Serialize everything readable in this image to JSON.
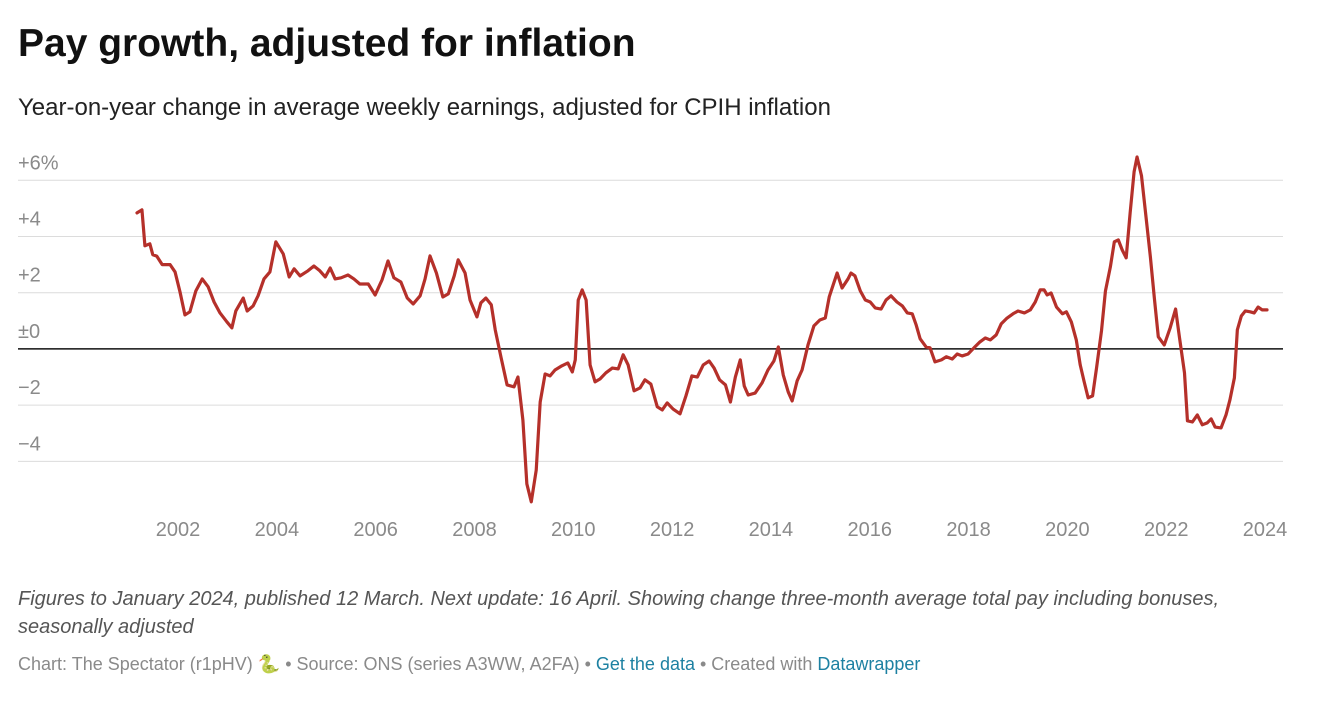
{
  "chart_data": {
    "type": "line",
    "title": "Pay growth, adjusted for inflation",
    "subtitle": "Year-on-year change in average weekly earnings, adjusted for CPIH inflation",
    "notes": "Figures to January 2024, published 12 March. Next update: 16 April. Showing change three-month average total pay including bonuses, seasonally adjusted",
    "source": {
      "chart": "Chart: The Spectator (r1pHV) 🐍",
      "separator": "•",
      "source": "Source: ONS (series A3WW, A2FA)",
      "get_data": "Get the data",
      "created": "Created with",
      "tool": "Datawrapper"
    },
    "color": "#b5302a",
    "xlim": [
      2001.17,
      2024.04
    ],
    "xticks": [
      2002,
      2004,
      2006,
      2008,
      2010,
      2012,
      2014,
      2016,
      2018,
      2020,
      2022,
      2024
    ],
    "ylim": [
      -5.5,
      6.9
    ],
    "yticks": [
      {
        "value": 6,
        "label": "+6%"
      },
      {
        "value": 4,
        "label": "+4"
      },
      {
        "value": 2,
        "label": "+2"
      },
      {
        "value": 0,
        "label": "±0"
      },
      {
        "value": -2,
        "label": "−2"
      },
      {
        "value": -4,
        "label": "−4"
      }
    ],
    "grid": true,
    "x": [
      2001.17,
      2001.27,
      2001.33,
      2001.43,
      2001.49,
      2001.57,
      2001.68,
      2001.84,
      2001.94,
      2002.04,
      2002.14,
      2002.24,
      2002.36,
      2002.49,
      2002.61,
      2002.73,
      2002.85,
      2002.99,
      2003.09,
      2003.17,
      2003.32,
      2003.4,
      2003.52,
      2003.62,
      2003.74,
      2003.86,
      2003.98,
      2004.13,
      2004.25,
      2004.35,
      2004.47,
      2004.63,
      2004.75,
      2004.87,
      2004.98,
      2005.08,
      2005.18,
      2005.3,
      2005.44,
      2005.56,
      2005.68,
      2005.85,
      2005.99,
      2006.13,
      2006.25,
      2006.37,
      2006.51,
      2006.64,
      2006.76,
      2006.9,
      2007.0,
      2007.1,
      2007.23,
      2007.36,
      2007.47,
      2007.59,
      2007.67,
      2007.81,
      2007.91,
      2008.05,
      2008.13,
      2008.23,
      2008.34,
      2008.42,
      2008.54,
      2008.66,
      2008.8,
      2008.88,
      2008.98,
      2009.06,
      2009.15,
      2009.25,
      2009.33,
      2009.43,
      2009.53,
      2009.63,
      2009.77,
      2009.89,
      2009.98,
      2010.04,
      2010.1,
      2010.18,
      2010.26,
      2010.34,
      2010.44,
      2010.54,
      2010.66,
      2010.79,
      2010.91,
      2011.01,
      2011.11,
      2011.23,
      2011.35,
      2011.45,
      2011.57,
      2011.7,
      2011.8,
      2011.9,
      2012.02,
      2012.16,
      2012.28,
      2012.4,
      2012.51,
      2012.63,
      2012.75,
      2012.85,
      2012.96,
      2013.08,
      2013.18,
      2013.28,
      2013.38,
      2013.46,
      2013.54,
      2013.68,
      2013.82,
      2013.94,
      2014.06,
      2014.15,
      2014.25,
      2014.35,
      2014.43,
      2014.53,
      2014.63,
      2014.75,
      2014.87,
      2014.99,
      2015.1,
      2015.18,
      2015.26,
      2015.34,
      2015.44,
      2015.56,
      2015.62,
      2015.7,
      2015.81,
      2015.91,
      2016.01,
      2016.11,
      2016.23,
      2016.33,
      2016.43,
      2016.55,
      2016.66,
      2016.76,
      2016.86,
      2016.94,
      2017.02,
      2017.14,
      2017.22,
      2017.32,
      2017.45,
      2017.55,
      2017.67,
      2017.77,
      2017.87,
      2017.99,
      2018.11,
      2018.23,
      2018.34,
      2018.44,
      2018.56,
      2018.66,
      2018.78,
      2018.9,
      2019.0,
      2019.13,
      2019.25,
      2019.35,
      2019.45,
      2019.53,
      2019.59,
      2019.67,
      2019.78,
      2019.9,
      2019.98,
      2020.08,
      2020.18,
      2020.26,
      2020.34,
      2020.42,
      2020.51,
      2020.59,
      2020.69,
      2020.77,
      2020.87,
      2020.95,
      2021.03,
      2021.11,
      2021.19,
      2021.27,
      2021.35,
      2021.41,
      2021.5,
      2021.58,
      2021.68,
      2021.76,
      2021.84,
      2021.96,
      2022.08,
      2022.19,
      2022.27,
      2022.37,
      2022.43,
      2022.53,
      2022.63,
      2022.73,
      2022.83,
      2022.91,
      2022.99,
      2023.11,
      2023.21,
      2023.29,
      2023.38,
      2023.44,
      2023.52,
      2023.6,
      2023.7,
      2023.78,
      2023.86,
      2023.94,
      2024.04
    ],
    "values": [
      4.84,
      4.95,
      3.67,
      3.74,
      3.35,
      3.3,
      3.0,
      3.0,
      2.74,
      2.03,
      1.21,
      1.32,
      2.06,
      2.49,
      2.21,
      1.67,
      1.28,
      0.96,
      0.75,
      1.35,
      1.81,
      1.35,
      1.53,
      1.89,
      2.49,
      2.74,
      3.81,
      3.38,
      2.56,
      2.85,
      2.6,
      2.78,
      2.95,
      2.78,
      2.56,
      2.88,
      2.49,
      2.53,
      2.63,
      2.49,
      2.31,
      2.31,
      1.92,
      2.46,
      3.13,
      2.53,
      2.38,
      1.81,
      1.6,
      1.89,
      2.49,
      3.31,
      2.7,
      1.85,
      1.96,
      2.6,
      3.17,
      2.7,
      1.74,
      1.14,
      1.64,
      1.81,
      1.57,
      0.68,
      -0.32,
      -1.28,
      -1.35,
      -1.0,
      -2.53,
      -4.8,
      -5.44,
      -4.31,
      -1.89,
      -0.89,
      -0.96,
      -0.75,
      -0.6,
      -0.5,
      -0.82,
      -0.39,
      1.74,
      2.1,
      1.74,
      -0.57,
      -1.17,
      -1.07,
      -0.85,
      -0.68,
      -0.71,
      -0.21,
      -0.57,
      -1.49,
      -1.39,
      -1.1,
      -1.25,
      -2.06,
      -2.17,
      -1.92,
      -2.14,
      -2.31,
      -1.67,
      -0.96,
      -1.0,
      -0.57,
      -0.43,
      -0.68,
      -1.1,
      -1.28,
      -1.89,
      -1.0,
      -0.39,
      -1.32,
      -1.64,
      -1.57,
      -1.21,
      -0.75,
      -0.43,
      0.07,
      -0.93,
      -1.53,
      -1.85,
      -1.14,
      -0.75,
      0.14,
      0.82,
      1.03,
      1.1,
      1.85,
      2.28,
      2.7,
      2.17,
      2.49,
      2.7,
      2.6,
      2.06,
      1.74,
      1.67,
      1.46,
      1.42,
      1.74,
      1.89,
      1.67,
      1.53,
      1.28,
      1.25,
      0.85,
      0.36,
      0.07,
      0.04,
      -0.46,
      -0.39,
      -0.28,
      -0.36,
      -0.18,
      -0.25,
      -0.18,
      0.04,
      0.25,
      0.39,
      0.32,
      0.5,
      0.89,
      1.1,
      1.25,
      1.35,
      1.28,
      1.39,
      1.67,
      2.1,
      2.1,
      1.92,
      1.99,
      1.49,
      1.25,
      1.32,
      0.96,
      0.32,
      -0.57,
      -1.17,
      -1.74,
      -1.67,
      -0.68,
      0.64,
      2.06,
      2.92,
      3.81,
      3.88,
      3.52,
      3.24,
      4.84,
      6.3,
      6.83,
      6.16,
      4.88,
      3.27,
      1.81,
      0.43,
      0.14,
      0.75,
      1.42,
      0.39,
      -0.85,
      -2.56,
      -2.6,
      -2.35,
      -2.7,
      -2.63,
      -2.49,
      -2.78,
      -2.81,
      -2.35,
      -1.81,
      -1.03,
      0.68,
      1.17,
      1.35,
      1.32,
      1.28,
      1.49,
      1.39,
      1.39
    ]
  }
}
